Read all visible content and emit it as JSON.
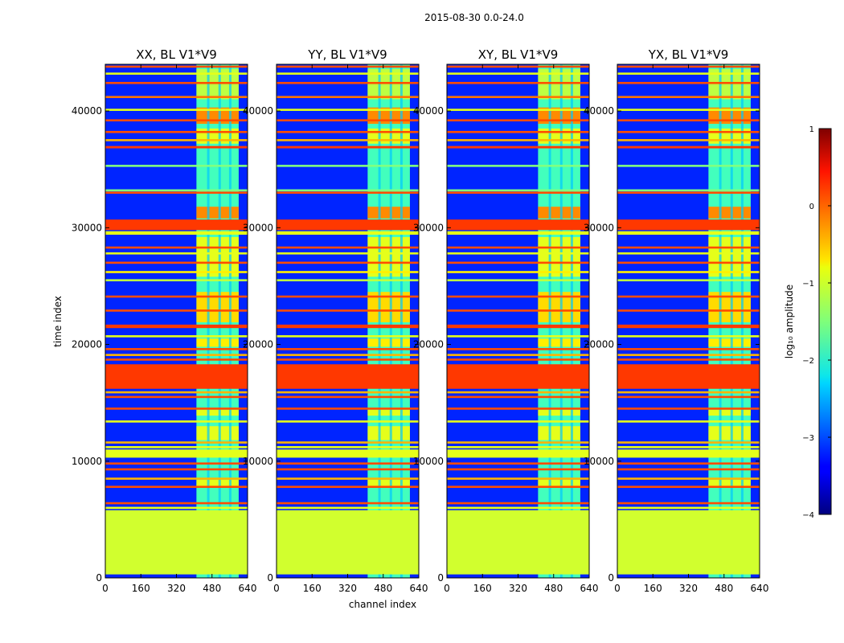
{
  "chart_data": {
    "type": "heatmap",
    "suptitle": "2015-08-30 0.0-24.0",
    "xlabel": "channel index",
    "ylabel": "time index",
    "xlim": [
      0,
      640
    ],
    "ylim": [
      0,
      44000
    ],
    "x_ticks": [
      "0",
      "160",
      "320",
      "480",
      "640"
    ],
    "y_ticks": [
      "0",
      "10000",
      "20000",
      "30000",
      "40000"
    ],
    "x_tick_values": [
      0,
      160,
      320,
      480,
      640
    ],
    "y_tick_values": [
      0,
      10000,
      20000,
      30000,
      40000
    ],
    "colormap": "jet",
    "colorbar": {
      "label": "log₁₀ amplitude",
      "range": [
        -4,
        1
      ],
      "ticks": [
        "1",
        "0",
        "−1",
        "−2",
        "−3",
        "−4"
      ],
      "tick_values": [
        1,
        0,
        -1,
        -2,
        -3,
        -4
      ]
    },
    "panels": [
      {
        "title": "XX, BL V1*V9",
        "band_channel_start": 410,
        "band_channel_end": 600
      },
      {
        "title": "YY, BL V1*V9",
        "band_channel_start": 410,
        "band_channel_end": 600
      },
      {
        "title": "XY, BL V1*V9",
        "band_channel_start": 410,
        "band_channel_end": 600
      },
      {
        "title": "YX, BL V1*V9",
        "band_channel_start": 410,
        "band_channel_end": 600
      }
    ],
    "background_level": -3.2,
    "band_level": -1.8,
    "flagged_region": {
      "time_start": 300,
      "time_end": 5800,
      "level": -1.1
    },
    "strong_rows": [
      {
        "t0": 16200,
        "t1": 18300,
        "level": 0.1
      },
      {
        "t0": 29800,
        "t1": 30700,
        "level": 0.1
      },
      {
        "t0": 21400,
        "t1": 21700,
        "level": 0.1
      },
      {
        "t0": 36800,
        "t1": 37000,
        "level": 0.1
      },
      {
        "t0": 10300,
        "t1": 11000,
        "level": -1.0
      },
      {
        "t0": 29400,
        "t1": 29700,
        "level": -1.0
      }
    ],
    "horizontal_lines": [
      {
        "t": 43800,
        "level": 0.0
      },
      {
        "t": 43200,
        "level": -1.0
      },
      {
        "t": 42400,
        "level": 0.0
      },
      {
        "t": 41200,
        "level": -0.2
      },
      {
        "t": 40100,
        "level": -1.0
      },
      {
        "t": 39200,
        "level": 0.0
      },
      {
        "t": 38200,
        "level": 0.0
      },
      {
        "t": 37500,
        "level": -0.5
      },
      {
        "t": 35300,
        "level": -1.5
      },
      {
        "t": 33200,
        "level": -1.5
      },
      {
        "t": 33000,
        "level": 0.0
      },
      {
        "t": 28300,
        "level": 0.0
      },
      {
        "t": 27800,
        "level": -1.0
      },
      {
        "t": 27000,
        "level": 0.0
      },
      {
        "t": 26200,
        "level": -0.8
      },
      {
        "t": 25500,
        "level": -1.2
      },
      {
        "t": 24100,
        "level": 0.0
      },
      {
        "t": 22900,
        "level": 0.0
      },
      {
        "t": 20700,
        "level": -1.0
      },
      {
        "t": 19600,
        "level": 0.0
      },
      {
        "t": 19100,
        "level": -0.5
      },
      {
        "t": 18700,
        "level": 0.0
      },
      {
        "t": 15900,
        "level": -0.5
      },
      {
        "t": 15500,
        "level": 0.0
      },
      {
        "t": 14500,
        "level": 0.0
      },
      {
        "t": 13400,
        "level": -1.0
      },
      {
        "t": 11600,
        "level": -0.5
      },
      {
        "t": 11200,
        "level": -1.0
      },
      {
        "t": 9800,
        "level": 0.0
      },
      {
        "t": 9300,
        "level": 0.0
      },
      {
        "t": 8500,
        "level": -0.5
      },
      {
        "t": 7800,
        "level": 0.0
      },
      {
        "t": 6400,
        "level": 0.0
      },
      {
        "t": 6000,
        "level": -1.0
      }
    ],
    "band_blocks": [
      {
        "t0": 11800,
        "t1": 13000,
        "level": -1.0
      },
      {
        "t0": 13900,
        "t1": 14400,
        "level": -1.0
      },
      {
        "t0": 19800,
        "t1": 20500,
        "level": -0.8
      },
      {
        "t0": 21900,
        "t1": 24500,
        "level": -0.7
      },
      {
        "t0": 25800,
        "t1": 29200,
        "level": -1.0
      },
      {
        "t0": 30800,
        "t1": 31800,
        "level": -0.3
      },
      {
        "t0": 37200,
        "t1": 38500,
        "level": -1.0
      },
      {
        "t0": 38900,
        "t1": 40300,
        "level": -0.3
      },
      {
        "t0": 41000,
        "t1": 43600,
        "level": -1.2
      },
      {
        "t0": 7800,
        "t1": 8400,
        "level": -1.0
      }
    ]
  }
}
